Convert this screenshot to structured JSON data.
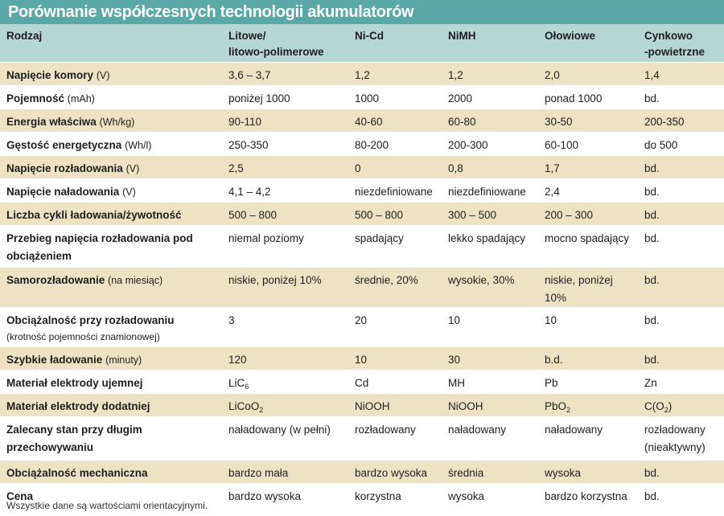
{
  "title": "Porównanie współczesnych technologii akumulatorów",
  "columns": [
    {
      "lines": [
        "Rodzaj"
      ]
    },
    {
      "lines": [
        "Litowe/",
        "litowo-polimerowe"
      ]
    },
    {
      "lines": [
        "Ni-Cd"
      ]
    },
    {
      "lines": [
        "NiMH"
      ]
    },
    {
      "lines": [
        "Ołowiowe"
      ]
    },
    {
      "lines": [
        "Cynkowo",
        "-powietrzne"
      ]
    }
  ],
  "rows": [
    {
      "name": "Napięcie komory",
      "unit": "(V)",
      "note": "",
      "height": 29,
      "shaded": true,
      "cells": [
        [
          {
            "t": "3,6 – 3,7"
          }
        ],
        [
          {
            "t": "1,2"
          }
        ],
        [
          {
            "t": "1,2"
          }
        ],
        [
          {
            "t": "2,0"
          }
        ],
        [
          {
            "t": "1,4"
          }
        ]
      ]
    },
    {
      "name": "Pojemność",
      "unit": "(mAh)",
      "note": "",
      "height": 29,
      "shaded": false,
      "cells": [
        [
          {
            "t": "poniżej 1000"
          }
        ],
        [
          {
            "t": "1000"
          }
        ],
        [
          {
            "t": "2000"
          }
        ],
        [
          {
            "t": "ponad 1000"
          }
        ],
        [
          {
            "t": "bd."
          }
        ]
      ]
    },
    {
      "name": "Energia właściwa",
      "unit": "(Wh/kg)",
      "note": "",
      "height": 29,
      "shaded": true,
      "cells": [
        [
          {
            "t": "90-110"
          }
        ],
        [
          {
            "t": "40-60"
          }
        ],
        [
          {
            "t": "60-80"
          }
        ],
        [
          {
            "t": "30-50"
          }
        ],
        [
          {
            "t": "200-350"
          }
        ]
      ]
    },
    {
      "name": "Gęstość energetyczna",
      "unit": "(Wh/l)",
      "note": "",
      "height": 29,
      "shaded": false,
      "cells": [
        [
          {
            "t": "250-350"
          }
        ],
        [
          {
            "t": "80-200"
          }
        ],
        [
          {
            "t": "200-300"
          }
        ],
        [
          {
            "t": "60-100"
          }
        ],
        [
          {
            "t": "do 500"
          }
        ]
      ]
    },
    {
      "name": "Napięcie rozładowania",
      "unit": "(V)",
      "note": "",
      "height": 29,
      "shaded": true,
      "cells": [
        [
          {
            "t": "2,5"
          }
        ],
        [
          {
            "t": "0"
          }
        ],
        [
          {
            "t": "0,8"
          }
        ],
        [
          {
            "t": "1,7"
          }
        ],
        [
          {
            "t": "bd."
          }
        ]
      ]
    },
    {
      "name": "Napięcie naładowania",
      "unit": "(V)",
      "note": "",
      "height": 29,
      "shaded": false,
      "cells": [
        [
          {
            "t": "4,1 – 4,2"
          }
        ],
        [
          {
            "t": "niezdefiniowane"
          }
        ],
        [
          {
            "t": "niezdefiniowane"
          }
        ],
        [
          {
            "t": "2,4"
          }
        ],
        [
          {
            "t": "bd."
          }
        ]
      ]
    },
    {
      "name": "Liczba cykli ładowania/żywotność",
      "unit": "",
      "note": "",
      "height": 29,
      "shaded": true,
      "cells": [
        [
          {
            "t": "500 – 800"
          }
        ],
        [
          {
            "t": "500 – 800"
          }
        ],
        [
          {
            "t": "300 – 500"
          }
        ],
        [
          {
            "t": "200 – 300"
          }
        ],
        [
          {
            "t": "bd."
          }
        ]
      ]
    },
    {
      "name": "Przebieg napięcia rozładowania pod obciążeniem",
      "unit": "",
      "note": "",
      "height": 52,
      "shaded": false,
      "cells": [
        [
          {
            "t": "niemal poziomy"
          }
        ],
        [
          {
            "t": "spadający"
          }
        ],
        [
          {
            "t": "lekko spadający"
          }
        ],
        [
          {
            "t": "mocno spadający"
          }
        ],
        [
          {
            "t": "bd."
          }
        ]
      ]
    },
    {
      "name": "Samorozładowanie",
      "unit": "(na miesiąc)",
      "note": "",
      "height": 29,
      "shaded": true,
      "cells": [
        [
          {
            "t": "niskie, poniżej 10%"
          }
        ],
        [
          {
            "t": "średnie, 20%"
          }
        ],
        [
          {
            "t": "wysokie, 30%"
          }
        ],
        [
          {
            "t": "niskie, poniżej 10%"
          }
        ],
        [
          {
            "t": "bd."
          }
        ]
      ]
    },
    {
      "name": "Obciążalność przy rozładowaniu",
      "unit": "",
      "note": "(krotność pojemności znamionowej)",
      "height": 49,
      "shaded": false,
      "cells": [
        [
          {
            "t": "3"
          }
        ],
        [
          {
            "t": "20"
          }
        ],
        [
          {
            "t": "10"
          }
        ],
        [
          {
            "t": "10"
          }
        ],
        [
          {
            "t": "bd."
          }
        ]
      ]
    },
    {
      "name": "Szybkie ładowanie",
      "unit": "(minuty)",
      "note": "",
      "height": 29,
      "shaded": true,
      "cells": [
        [
          {
            "t": "120"
          }
        ],
        [
          {
            "t": "10"
          }
        ],
        [
          {
            "t": "30"
          }
        ],
        [
          {
            "t": "b.d."
          }
        ],
        [
          {
            "t": "bd."
          }
        ]
      ]
    },
    {
      "name": "Materiał elektrody ujemnej",
      "unit": "",
      "note": "",
      "height": 29,
      "shaded": false,
      "cells": [
        [
          {
            "t": "LiC"
          },
          {
            "sub": "6"
          }
        ],
        [
          {
            "t": "Cd"
          }
        ],
        [
          {
            "t": "MH"
          }
        ],
        [
          {
            "t": "Pb"
          }
        ],
        [
          {
            "t": "Zn"
          }
        ]
      ]
    },
    {
      "name": "Materiał elektrody dodatniej",
      "unit": "",
      "note": "",
      "height": 29,
      "shaded": true,
      "cells": [
        [
          {
            "t": "LiCoO"
          },
          {
            "sub": "2"
          }
        ],
        [
          {
            "t": "NiOOH"
          }
        ],
        [
          {
            "t": "NiOOH"
          }
        ],
        [
          {
            "t": "PbO"
          },
          {
            "sub": "2"
          }
        ],
        [
          {
            "t": "C(O"
          },
          {
            "sub": "2"
          },
          {
            "t": ")"
          }
        ]
      ]
    },
    {
      "name": "Zalecany stan przy długim przechowywaniu",
      "unit": "",
      "note": "",
      "height": 54,
      "shaded": false,
      "cells": [
        [
          {
            "t": "naładowany (w pełni)"
          }
        ],
        [
          {
            "t": "rozładowany"
          }
        ],
        [
          {
            "t": "naładowany"
          }
        ],
        [
          {
            "t": "naładowany"
          }
        ],
        [
          {
            "t": "rozładowany"
          },
          {
            "br": true
          },
          {
            "t": "(nieaktywny)"
          }
        ]
      ]
    },
    {
      "name": "Obciążalność mechaniczna",
      "unit": "",
      "note": "",
      "height": 29,
      "shaded": true,
      "cells": [
        [
          {
            "t": "bardzo mała"
          }
        ],
        [
          {
            "t": "bardzo wysoka"
          }
        ],
        [
          {
            "t": "średnia"
          }
        ],
        [
          {
            "t": "wysoka"
          }
        ],
        [
          {
            "t": "bd."
          }
        ]
      ]
    },
    {
      "name": "Cena",
      "unit": "",
      "note": "",
      "height": 29,
      "shaded": false,
      "cells": [
        [
          {
            "t": "bardzo wysoka"
          }
        ],
        [
          {
            "t": "korzystna"
          }
        ],
        [
          {
            "t": "wysoka"
          }
        ],
        [
          {
            "t": "bardzo korzystna"
          }
        ],
        [
          {
            "t": "bd."
          }
        ]
      ]
    }
  ],
  "footnote": "Wszystkie dane są wartościami orientacyjnymi."
}
